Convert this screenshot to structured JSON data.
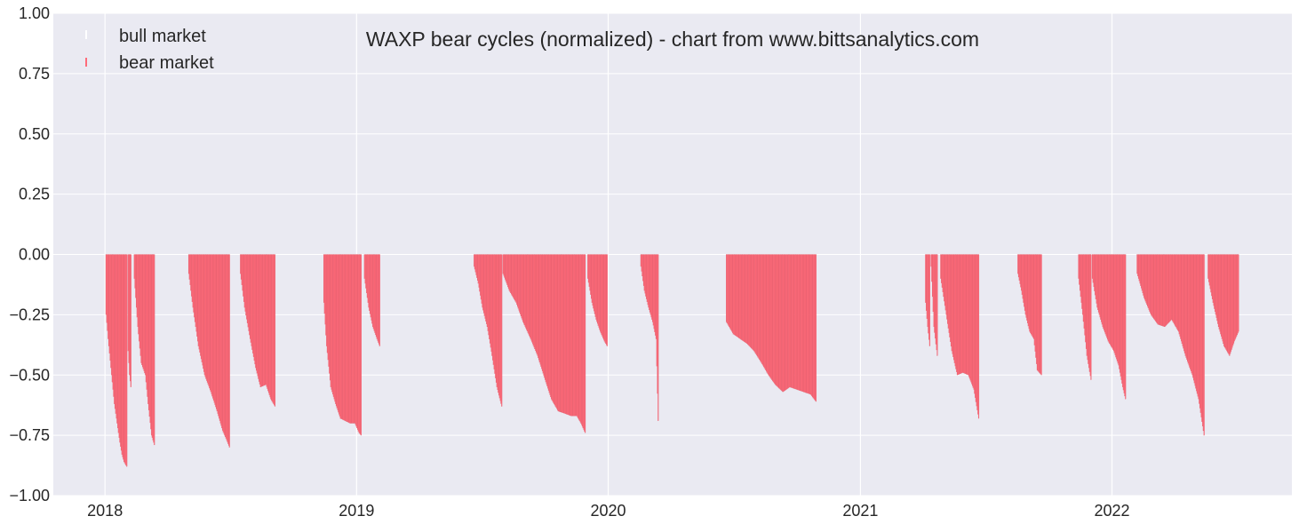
{
  "chart_data": {
    "type": "bar",
    "title": "WAXP bear cycles (normalized)  - chart from www.bittsanalytics.com",
    "xlabel": "",
    "ylabel": "",
    "x_range": [
      "2017-10-18",
      "2022-09-19"
    ],
    "ylim": [
      -1.0,
      1.0
    ],
    "y_ticks": [
      -1.0,
      -0.75,
      -0.5,
      -0.25,
      0.0,
      0.25,
      0.5,
      0.75,
      1.0
    ],
    "y_tick_labels": [
      "−1.00",
      "−0.75",
      "−0.50",
      "−0.25",
      "0.00",
      "0.25",
      "0.50",
      "0.75",
      "1.00"
    ],
    "x_ticks": [
      "2018-01-01",
      "2019-01-01",
      "2020-01-01",
      "2021-01-01",
      "2022-01-01"
    ],
    "x_tick_labels": [
      "2018",
      "2019",
      "2020",
      "2021",
      "2022"
    ],
    "grid": true,
    "legend_position": "top-left",
    "legend": [
      {
        "label": "bull market",
        "color": "#ffffff"
      },
      {
        "label": "bear market",
        "color": "#ff6b7a"
      }
    ],
    "colors": {
      "bear": "#ff6b7a",
      "bull": "#ffffff",
      "background": "#eaeaf2",
      "grid": "#ffffff"
    },
    "series": [
      {
        "name": "bear market",
        "segments": [
          {
            "start": "2018-01-02",
            "end": "2018-02-01",
            "points": [
              [
                "2018-01-02",
                -0.25
              ],
              [
                "2018-01-05",
                -0.35
              ],
              [
                "2018-01-10",
                -0.5
              ],
              [
                "2018-01-14",
                -0.62
              ],
              [
                "2018-01-18",
                -0.7
              ],
              [
                "2018-01-22",
                -0.78
              ],
              [
                "2018-01-25",
                -0.83
              ],
              [
                "2018-01-28",
                -0.86
              ],
              [
                "2018-02-01",
                -0.88
              ]
            ]
          },
          {
            "start": "2018-02-03",
            "end": "2018-02-07",
            "points": [
              [
                "2018-02-03",
                -0.4
              ],
              [
                "2018-02-05",
                -0.5
              ],
              [
                "2018-02-07",
                -0.55
              ]
            ]
          },
          {
            "start": "2018-02-12",
            "end": "2018-03-13",
            "points": [
              [
                "2018-02-12",
                -0.1
              ],
              [
                "2018-02-17",
                -0.3
              ],
              [
                "2018-02-22",
                -0.45
              ],
              [
                "2018-02-28",
                -0.5
              ],
              [
                "2018-03-04",
                -0.62
              ],
              [
                "2018-03-09",
                -0.75
              ],
              [
                "2018-03-13",
                -0.79
              ]
            ]
          },
          {
            "start": "2018-05-02",
            "end": "2018-06-30",
            "points": [
              [
                "2018-05-02",
                -0.08
              ],
              [
                "2018-05-08",
                -0.22
              ],
              [
                "2018-05-16",
                -0.38
              ],
              [
                "2018-05-25",
                -0.5
              ],
              [
                "2018-06-03",
                -0.57
              ],
              [
                "2018-06-12",
                -0.65
              ],
              [
                "2018-06-20",
                -0.73
              ],
              [
                "2018-06-26",
                -0.77
              ],
              [
                "2018-06-30",
                -0.8
              ]
            ]
          },
          {
            "start": "2018-07-16",
            "end": "2018-09-04",
            "points": [
              [
                "2018-07-16",
                -0.08
              ],
              [
                "2018-07-22",
                -0.22
              ],
              [
                "2018-07-30",
                -0.35
              ],
              [
                "2018-08-07",
                -0.47
              ],
              [
                "2018-08-14",
                -0.55
              ],
              [
                "2018-08-22",
                -0.54
              ],
              [
                "2018-08-29",
                -0.6
              ],
              [
                "2018-09-04",
                -0.63
              ]
            ]
          },
          {
            "start": "2018-11-14",
            "end": "2019-01-07",
            "points": [
              [
                "2018-11-14",
                -0.2
              ],
              [
                "2018-11-18",
                -0.38
              ],
              [
                "2018-11-24",
                -0.55
              ],
              [
                "2018-12-01",
                -0.62
              ],
              [
                "2018-12-08",
                -0.68
              ],
              [
                "2018-12-15",
                -0.69
              ],
              [
                "2018-12-22",
                -0.7
              ],
              [
                "2018-12-29",
                -0.7
              ],
              [
                "2019-01-04",
                -0.74
              ],
              [
                "2019-01-07",
                -0.75
              ]
            ]
          },
          {
            "start": "2019-01-12",
            "end": "2019-02-03",
            "points": [
              [
                "2019-01-12",
                -0.1
              ],
              [
                "2019-01-18",
                -0.22
              ],
              [
                "2019-01-24",
                -0.3
              ],
              [
                "2019-01-30",
                -0.35
              ],
              [
                "2019-02-03",
                -0.38
              ]
            ]
          },
          {
            "start": "2019-06-20",
            "end": "2019-07-30",
            "points": [
              [
                "2019-06-20",
                -0.05
              ],
              [
                "2019-06-26",
                -0.12
              ],
              [
                "2019-07-02",
                -0.22
              ],
              [
                "2019-07-09",
                -0.3
              ],
              [
                "2019-07-16",
                -0.42
              ],
              [
                "2019-07-23",
                -0.55
              ],
              [
                "2019-07-30",
                -0.63
              ]
            ]
          },
          {
            "start": "2019-08-01",
            "end": "2019-11-28",
            "points": [
              [
                "2019-08-01",
                -0.08
              ],
              [
                "2019-08-10",
                -0.15
              ],
              [
                "2019-08-20",
                -0.2
              ],
              [
                "2019-08-30",
                -0.28
              ],
              [
                "2019-09-10",
                -0.35
              ],
              [
                "2019-09-20",
                -0.42
              ],
              [
                "2019-10-01",
                -0.52
              ],
              [
                "2019-10-10",
                -0.6
              ],
              [
                "2019-10-20",
                -0.65
              ],
              [
                "2019-10-30",
                -0.66
              ],
              [
                "2019-11-08",
                -0.67
              ],
              [
                "2019-11-16",
                -0.67
              ],
              [
                "2019-11-22",
                -0.7
              ],
              [
                "2019-11-28",
                -0.74
              ]
            ]
          },
          {
            "start": "2019-12-02",
            "end": "2019-12-30",
            "points": [
              [
                "2019-12-02",
                -0.1
              ],
              [
                "2019-12-08",
                -0.2
              ],
              [
                "2019-12-14",
                -0.27
              ],
              [
                "2019-12-20",
                -0.32
              ],
              [
                "2019-12-26",
                -0.36
              ],
              [
                "2019-12-30",
                -0.38
              ]
            ]
          },
          {
            "start": "2020-02-17",
            "end": "2020-03-13",
            "points": [
              [
                "2020-02-17",
                -0.05
              ],
              [
                "2020-02-22",
                -0.15
              ],
              [
                "2020-02-28",
                -0.22
              ],
              [
                "2020-03-05",
                -0.28
              ],
              [
                "2020-03-10",
                -0.35
              ],
              [
                "2020-03-13",
                -0.69
              ]
            ]
          },
          {
            "start": "2020-06-20",
            "end": "2020-10-28",
            "points": [
              [
                "2020-06-20",
                -0.28
              ],
              [
                "2020-06-30",
                -0.33
              ],
              [
                "2020-07-10",
                -0.35
              ],
              [
                "2020-07-20",
                -0.37
              ],
              [
                "2020-07-30",
                -0.4
              ],
              [
                "2020-08-10",
                -0.45
              ],
              [
                "2020-08-20",
                -0.5
              ],
              [
                "2020-08-30",
                -0.54
              ],
              [
                "2020-09-10",
                -0.57
              ],
              [
                "2020-09-20",
                -0.55
              ],
              [
                "2020-09-30",
                -0.56
              ],
              [
                "2020-10-10",
                -0.57
              ],
              [
                "2020-10-20",
                -0.58
              ],
              [
                "2020-10-28",
                -0.61
              ]
            ]
          },
          {
            "start": "2021-04-05",
            "end": "2021-04-11",
            "points": [
              [
                "2021-04-05",
                -0.2
              ],
              [
                "2021-04-08",
                -0.3
              ],
              [
                "2021-04-11",
                -0.38
              ]
            ]
          },
          {
            "start": "2021-04-13",
            "end": "2021-04-22",
            "points": [
              [
                "2021-04-13",
                -0.05
              ],
              [
                "2021-04-17",
                -0.3
              ],
              [
                "2021-04-22",
                -0.42
              ]
            ]
          },
          {
            "start": "2021-04-27",
            "end": "2021-06-21",
            "points": [
              [
                "2021-04-27",
                -0.1
              ],
              [
                "2021-05-05",
                -0.25
              ],
              [
                "2021-05-13",
                -0.4
              ],
              [
                "2021-05-21",
                -0.5
              ],
              [
                "2021-05-29",
                -0.49
              ],
              [
                "2021-06-06",
                -0.5
              ],
              [
                "2021-06-14",
                -0.56
              ],
              [
                "2021-06-21",
                -0.68
              ]
            ]
          },
          {
            "start": "2021-08-17",
            "end": "2021-09-20",
            "points": [
              [
                "2021-08-17",
                -0.08
              ],
              [
                "2021-08-22",
                -0.15
              ],
              [
                "2021-08-28",
                -0.25
              ],
              [
                "2021-09-03",
                -0.32
              ],
              [
                "2021-09-09",
                -0.35
              ],
              [
                "2021-09-14",
                -0.48
              ],
              [
                "2021-09-20",
                -0.5
              ]
            ]
          },
          {
            "start": "2021-11-13",
            "end": "2021-12-01",
            "points": [
              [
                "2021-11-13",
                -0.1
              ],
              [
                "2021-11-19",
                -0.25
              ],
              [
                "2021-11-25",
                -0.42
              ],
              [
                "2021-12-01",
                -0.52
              ]
            ]
          },
          {
            "start": "2021-12-03",
            "end": "2022-01-20",
            "points": [
              [
                "2021-12-03",
                -0.1
              ],
              [
                "2021-12-10",
                -0.22
              ],
              [
                "2021-12-18",
                -0.3
              ],
              [
                "2021-12-26",
                -0.36
              ],
              [
                "2022-01-03",
                -0.4
              ],
              [
                "2022-01-10",
                -0.46
              ],
              [
                "2022-01-16",
                -0.55
              ],
              [
                "2022-01-20",
                -0.6
              ]
            ]
          },
          {
            "start": "2022-02-06",
            "end": "2022-05-14",
            "points": [
              [
                "2022-02-06",
                -0.08
              ],
              [
                "2022-02-16",
                -0.18
              ],
              [
                "2022-02-26",
                -0.25
              ],
              [
                "2022-03-08",
                -0.29
              ],
              [
                "2022-03-18",
                -0.3
              ],
              [
                "2022-03-28",
                -0.27
              ],
              [
                "2022-04-07",
                -0.32
              ],
              [
                "2022-04-17",
                -0.42
              ],
              [
                "2022-04-27",
                -0.5
              ],
              [
                "2022-05-06",
                -0.6
              ],
              [
                "2022-05-14",
                -0.75
              ]
            ]
          },
          {
            "start": "2022-05-20",
            "end": "2022-07-03",
            "points": [
              [
                "2022-05-20",
                -0.1
              ],
              [
                "2022-05-27",
                -0.2
              ],
              [
                "2022-06-04",
                -0.3
              ],
              [
                "2022-06-12",
                -0.38
              ],
              [
                "2022-06-20",
                -0.42
              ],
              [
                "2022-06-27",
                -0.36
              ],
              [
                "2022-07-03",
                -0.32
              ]
            ]
          }
        ]
      }
    ]
  }
}
